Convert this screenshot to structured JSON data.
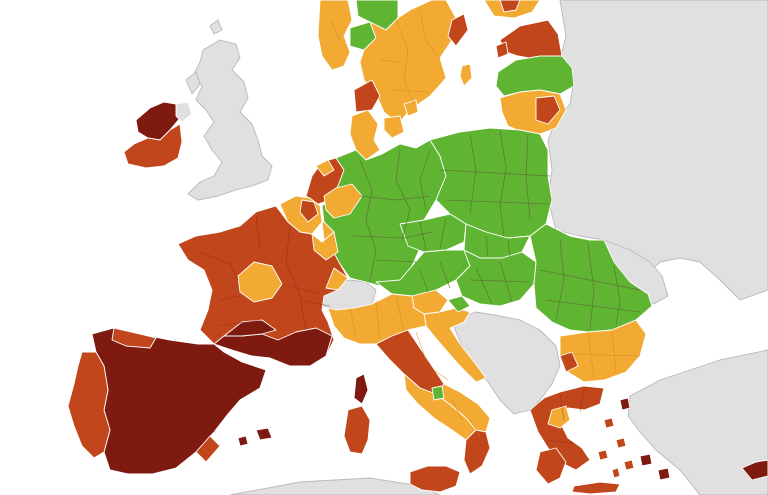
{
  "map": {
    "background_color": "#ffffff",
    "legend": [],
    "status_colors": {
      "green": "#5fb531",
      "orange": "#f2aa33",
      "red": "#c2461b",
      "dark_red": "#7e1a10",
      "no_data": "#e0e0e0",
      "grey_outline": "#bcbcbc"
    },
    "regions": [
      {
        "name": "ireland-northwest",
        "status": "dark_red"
      },
      {
        "name": "ireland-southeast",
        "status": "red"
      },
      {
        "name": "great-britain",
        "status": "no_data"
      },
      {
        "name": "norway-south",
        "status": "orange"
      },
      {
        "name": "sweden-south",
        "status": "orange"
      },
      {
        "name": "sweden-east",
        "status": "red"
      },
      {
        "name": "finland-south",
        "status": "orange"
      },
      {
        "name": "estonia",
        "status": "red"
      },
      {
        "name": "latvia",
        "status": "green"
      },
      {
        "name": "lithuania",
        "status": "orange"
      },
      {
        "name": "denmark",
        "status": "orange"
      },
      {
        "name": "netherlands",
        "status": "red"
      },
      {
        "name": "belgium",
        "status": "orange"
      },
      {
        "name": "luxembourg",
        "status": "orange"
      },
      {
        "name": "germany",
        "status": "green"
      },
      {
        "name": "poland",
        "status": "green"
      },
      {
        "name": "czechia",
        "status": "green"
      },
      {
        "name": "slovakia",
        "status": "green"
      },
      {
        "name": "austria",
        "status": "green"
      },
      {
        "name": "hungary",
        "status": "green"
      },
      {
        "name": "romania",
        "status": "green"
      },
      {
        "name": "bulgaria",
        "status": "orange"
      },
      {
        "name": "slovenia",
        "status": "orange"
      },
      {
        "name": "croatia",
        "status": "orange"
      },
      {
        "name": "france",
        "status": "red"
      },
      {
        "name": "france-centre",
        "status": "orange"
      },
      {
        "name": "france-southwest",
        "status": "dark_red"
      },
      {
        "name": "spain",
        "status": "dark_red"
      },
      {
        "name": "portugal",
        "status": "red"
      },
      {
        "name": "italy-north",
        "status": "orange"
      },
      {
        "name": "italy-centre",
        "status": "red"
      },
      {
        "name": "italy-south",
        "status": "orange"
      },
      {
        "name": "sardinia",
        "status": "red"
      },
      {
        "name": "corsica",
        "status": "dark_red"
      },
      {
        "name": "sicily",
        "status": "red"
      },
      {
        "name": "greece",
        "status": "red"
      },
      {
        "name": "switzerland",
        "status": "no_data"
      },
      {
        "name": "balkans",
        "status": "no_data"
      },
      {
        "name": "russia-ukraine-belarus",
        "status": "no_data"
      },
      {
        "name": "turkey",
        "status": "no_data"
      }
    ]
  }
}
